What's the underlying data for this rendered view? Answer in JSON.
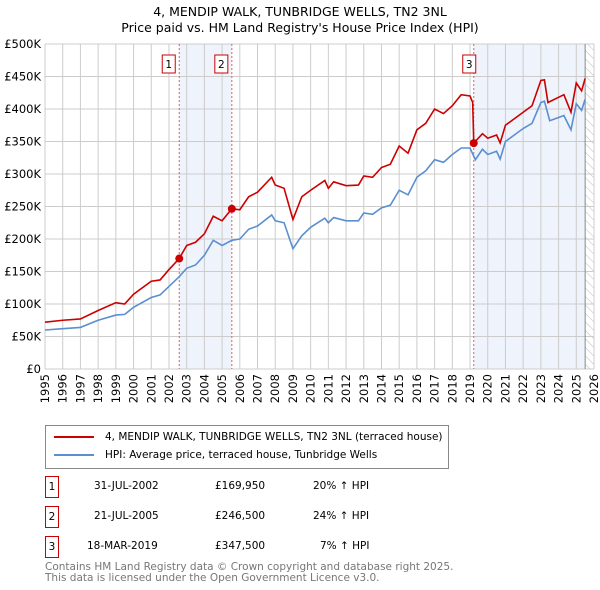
{
  "title": "4, MENDIP WALK, TUNBRIDGE WELLS, TN2 3NL",
  "subtitle": "Price paid vs. HM Land Registry's House Price Index (HPI)",
  "chart_data": {
    "type": "line",
    "title": "4, MENDIP WALK, TUNBRIDGE WELLS, TN2 3NL",
    "subtitle": "Price paid vs. HM Land Registry's House Price Index (HPI)",
    "xlim": [
      1995,
      2026
    ],
    "ylim": [
      0,
      500000
    ],
    "grid": true,
    "y_ticks": [
      {
        "v": 0,
        "label": "£0"
      },
      {
        "v": 50000,
        "label": "£50K"
      },
      {
        "v": 100000,
        "label": "£100K"
      },
      {
        "v": 150000,
        "label": "£150K"
      },
      {
        "v": 200000,
        "label": "£200K"
      },
      {
        "v": 250000,
        "label": "£250K"
      },
      {
        "v": 300000,
        "label": "£300K"
      },
      {
        "v": 350000,
        "label": "£350K"
      },
      {
        "v": 400000,
        "label": "£400K"
      },
      {
        "v": 450000,
        "label": "£450K"
      },
      {
        "v": 500000,
        "label": "£500K"
      }
    ],
    "x_ticks": [
      "1995",
      "1996",
      "1997",
      "1998",
      "1999",
      "2000",
      "2001",
      "2002",
      "2003",
      "2004",
      "2005",
      "2006",
      "2007",
      "2008",
      "2009",
      "2010",
      "2011",
      "2012",
      "2013",
      "2014",
      "2015",
      "2016",
      "2017",
      "2018",
      "2019",
      "2020",
      "2021",
      "2022",
      "2023",
      "2024",
      "2025",
      "2026"
    ],
    "series": [
      {
        "name": "4, MENDIP WALK, TUNBRIDGE WELLS, TN2 3NL (terraced house)",
        "color": "#cc0000",
        "x": [
          1995,
          1996,
          1997,
          1998,
          1999,
          1999.5,
          2000,
          2001,
          2001.5,
          2002,
          2002.58,
          2003,
          2003.5,
          2004,
          2004.5,
          2005,
          2005.55,
          2006,
          2006.5,
          2007,
          2007.8,
          2008,
          2008.5,
          2009,
          2009.5,
          2010,
          2010.8,
          2011,
          2011.3,
          2012,
          2012.7,
          2013,
          2013.5,
          2014,
          2014.5,
          2015,
          2015.5,
          2016,
          2016.5,
          2017,
          2017.5,
          2018,
          2018.5,
          2019,
          2019.15,
          2019.21,
          2019.7,
          2020,
          2020.5,
          2020.7,
          2021,
          2021.5,
          2022,
          2022.5,
          2023,
          2023.2,
          2023.4,
          2024,
          2024.3,
          2024.7,
          2025,
          2025.3,
          2025.5
        ],
        "y": [
          72,
          75,
          77,
          90,
          102,
          100,
          115,
          135,
          137,
          153,
          170,
          190,
          195,
          208,
          235,
          228,
          246.5,
          245,
          265,
          272,
          295,
          283,
          278,
          230,
          265,
          275,
          290,
          278,
          288,
          282,
          283,
          297,
          295,
          310,
          315,
          343,
          332,
          368,
          378,
          400,
          393,
          405,
          422,
          420,
          410,
          347.5,
          362,
          355,
          360,
          348,
          375,
          385,
          395,
          405,
          444,
          445,
          410,
          418,
          422,
          395,
          440,
          428,
          447
        ]
      },
      {
        "name": "HPI: Average price, terraced house, Tunbridge Wells",
        "color": "#5b8fd0",
        "x": [
          1995,
          1996,
          1997,
          1998,
          1999,
          1999.5,
          2000,
          2001,
          2001.5,
          2002,
          2002.58,
          2003,
          2003.5,
          2004,
          2004.5,
          2005,
          2005.55,
          2006,
          2006.5,
          2007,
          2007.8,
          2008,
          2008.5,
          2009,
          2009.5,
          2010,
          2010.8,
          2011,
          2011.3,
          2012,
          2012.7,
          2013,
          2013.5,
          2014,
          2014.5,
          2015,
          2015.5,
          2016,
          2016.5,
          2017,
          2017.5,
          2018,
          2018.5,
          2019,
          2019.3,
          2019.7,
          2020,
          2020.5,
          2020.7,
          2021,
          2021.5,
          2022,
          2022.5,
          2023,
          2023.2,
          2023.5,
          2024,
          2024.3,
          2024.7,
          2025,
          2025.3,
          2025.5
        ],
        "y": [
          60,
          62,
          64,
          75,
          83,
          84,
          95,
          110,
          114,
          127,
          142,
          155,
          160,
          175,
          198,
          190,
          198,
          200,
          215,
          220,
          237,
          228,
          225,
          185,
          205,
          218,
          232,
          225,
          233,
          228,
          228,
          240,
          238,
          248,
          252,
          275,
          268,
          295,
          305,
          322,
          318,
          330,
          340,
          340,
          322,
          338,
          330,
          335,
          323,
          350,
          360,
          370,
          378,
          410,
          412,
          382,
          387,
          390,
          368,
          408,
          398,
          415
        ]
      }
    ],
    "y_unit": "thousands GBP",
    "sales": [
      {
        "n": "1",
        "x": 2002.58,
        "y": 169.95
      },
      {
        "n": "2",
        "x": 2005.55,
        "y": 246.5
      },
      {
        "n": "3",
        "x": 2019.21,
        "y": 347.5
      }
    ],
    "shaded": [
      [
        2002.58,
        2005.55
      ],
      [
        2019.21,
        2025.5
      ]
    ],
    "hatch_from": 2025.5
  },
  "legend": {
    "red": "4, MENDIP WALK, TUNBRIDGE WELLS, TN2 3NL (terraced house)",
    "blue": "HPI: Average price, terraced house, Tunbridge Wells"
  },
  "transactions": [
    {
      "n": "1",
      "date": "31-JUL-2002",
      "price": "£169,950",
      "hpi": "20% ↑ HPI"
    },
    {
      "n": "2",
      "date": "21-JUL-2005",
      "price": "£246,500",
      "hpi": "24% ↑ HPI"
    },
    {
      "n": "3",
      "date": "18-MAR-2019",
      "price": "£347,500",
      "hpi": "7% ↑ HPI"
    }
  ],
  "footer": [
    "Contains HM Land Registry data © Crown copyright and database right 2025.",
    "This data is licensed under the Open Government Licence v3.0."
  ]
}
